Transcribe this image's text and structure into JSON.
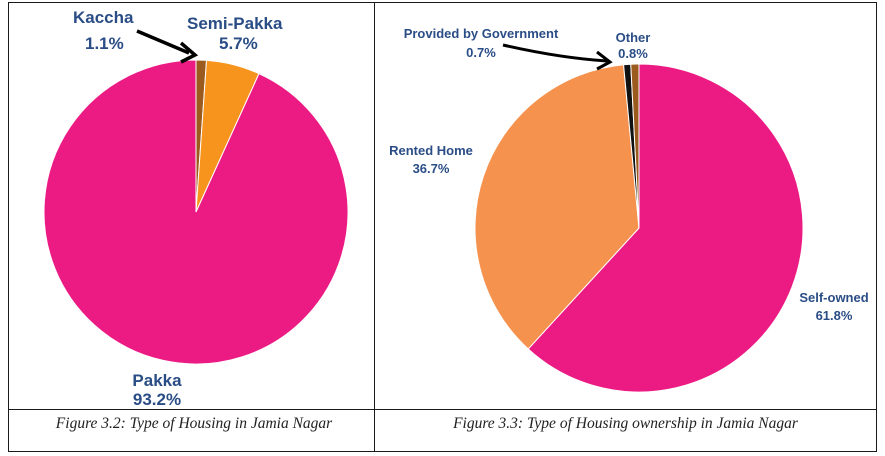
{
  "chart_data": [
    {
      "type": "pie",
      "title": "",
      "caption": "Figure 3.2: Type of Housing in Jamia Nagar",
      "slices": [
        {
          "label": "Kaccha",
          "value": 1.1,
          "display": "1.1%",
          "color": "#9b5a1e"
        },
        {
          "label": "Semi-Pakka",
          "value": 5.7,
          "display": "5.7%",
          "color": "#f7941d"
        },
        {
          "label": "Pakka",
          "value": 93.2,
          "display": "93.2%",
          "color": "#ec1b84"
        }
      ],
      "start_angle_deg": 0,
      "direction": "clockwise",
      "label_color": "#2a4d86"
    },
    {
      "type": "pie",
      "title": "",
      "caption": "Figure 3.3: Type of Housing ownership in Jamia Nagar",
      "slices": [
        {
          "label": "Self-owned",
          "value": 61.8,
          "display": "61.8%",
          "color": "#ec1b84"
        },
        {
          "label": "Rented Home",
          "value": 36.7,
          "display": "36.7%",
          "color": "#f5924e"
        },
        {
          "label": "Provided by Government",
          "value": 0.7,
          "display": "0.7%",
          "color": "#111111"
        },
        {
          "label": "Other",
          "value": 0.8,
          "display": "0.8%",
          "color": "#9b5a1e"
        }
      ],
      "start_angle_deg": 0,
      "direction": "clockwise",
      "label_color": "#2a4d86"
    }
  ]
}
